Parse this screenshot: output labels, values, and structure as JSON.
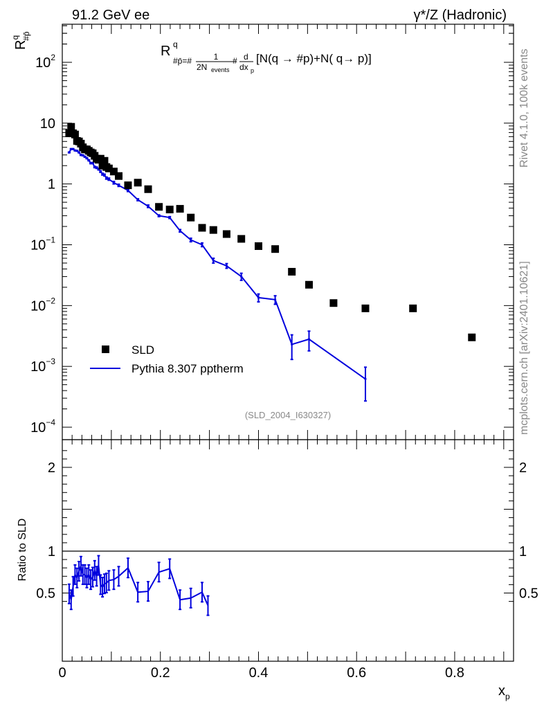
{
  "header": {
    "energy_label": "91.2 GeV ee",
    "process_label": "γ*/Z (Hadronic)"
  },
  "side_labels": {
    "rivet": "Rivet 4.1.0,  100k events",
    "source": "mcplots.cern.ch [arXiv:2401.10621]"
  },
  "chart_data": [
    {
      "type": "scatter",
      "panel": "main",
      "title": "R^q_{p/p̄} = 1/(2N_events) d/dx_p [N(q → p̄) + N(q̄ → p)]",
      "formula": {
        "lhs_main": "R",
        "lhs_sup": "q",
        "lhs_sub": "#p̄",
        "eq_sub": "#p̄=#",
        "num": "1",
        "den_main": "2N",
        "den_sub": "events",
        "hash": "#",
        "d": "d",
        "dx": "dx",
        "dx_sub": "p",
        "tail": "[N(q →  #p)+N( q→  p)]"
      },
      "ylabel": "R^q_{#p̄}",
      "ylabel_main": "R",
      "ylabel_sup": "q",
      "ylabel_sub": "#p̄",
      "xlabel": "x_p",
      "xlabel_main": "x",
      "xlabel_sub": "p",
      "yscale": "log",
      "xlim": [
        0,
        0.92
      ],
      "ylim": [
        0.0001,
        400
      ],
      "y_ticks": [
        {
          "value": 0.0001,
          "base": "10",
          "exp": "−4"
        },
        {
          "value": 0.001,
          "base": "10",
          "exp": "−3"
        },
        {
          "value": 0.01,
          "base": "10",
          "exp": "−2"
        },
        {
          "value": 0.1,
          "base": "10",
          "exp": "−1"
        },
        {
          "value": 1,
          "base": "1",
          "exp": ""
        },
        {
          "value": 10,
          "base": "10",
          "exp": ""
        },
        {
          "value": 100,
          "base": "10",
          "exp": "2"
        }
      ],
      "watermark": "(SLD_2004_I630327)",
      "legend_position": "bottom-left",
      "series": [
        {
          "name": "SLD",
          "style": "markers",
          "color": "#000000",
          "x": [
            0.014,
            0.018,
            0.022,
            0.026,
            0.03,
            0.034,
            0.038,
            0.042,
            0.046,
            0.05,
            0.054,
            0.058,
            0.062,
            0.066,
            0.07,
            0.074,
            0.078,
            0.082,
            0.086,
            0.09,
            0.095,
            0.105,
            0.115,
            0.134,
            0.154,
            0.175,
            0.197,
            0.219,
            0.24,
            0.262,
            0.285,
            0.308,
            0.335,
            0.365,
            0.4,
            0.434,
            0.468,
            0.503,
            0.553,
            0.618,
            0.715,
            0.835
          ],
          "values": [
            6.8,
            8.7,
            6.8,
            6.5,
            5.1,
            5.0,
            4.6,
            4.0,
            3.7,
            3.7,
            3.5,
            3.3,
            3.2,
            2.9,
            2.6,
            2.5,
            2.6,
            2.0,
            2.4,
            1.9,
            1.8,
            1.6,
            1.35,
            0.95,
            1.05,
            0.82,
            0.42,
            0.38,
            0.39,
            0.28,
            0.19,
            0.175,
            0.15,
            0.125,
            0.095,
            0.085,
            0.036,
            0.022,
            0.011,
            0.009,
            0.009,
            0.003
          ]
        },
        {
          "name": "Pythia 8.307 pptherm",
          "style": "line",
          "color": "#0000dd",
          "x": [
            0.014,
            0.018,
            0.022,
            0.026,
            0.03,
            0.034,
            0.038,
            0.042,
            0.046,
            0.05,
            0.054,
            0.058,
            0.062,
            0.066,
            0.07,
            0.074,
            0.078,
            0.082,
            0.086,
            0.09,
            0.095,
            0.105,
            0.115,
            0.134,
            0.154,
            0.175,
            0.197,
            0.219,
            0.24,
            0.262,
            0.285,
            0.308,
            0.335,
            0.365,
            0.4,
            0.434,
            0.468,
            0.503,
            0.618
          ],
          "values": [
            3.3,
            3.75,
            3.75,
            3.55,
            3.5,
            3.3,
            3.0,
            2.95,
            2.8,
            2.65,
            2.45,
            2.2,
            2.2,
            1.9,
            1.85,
            1.75,
            1.6,
            1.45,
            1.4,
            1.25,
            1.2,
            1.05,
            0.95,
            0.78,
            0.55,
            0.43,
            0.3,
            0.28,
            0.17,
            0.12,
            0.1,
            0.055,
            0.045,
            0.03,
            0.0135,
            0.0125,
            0.0023,
            0.0028,
            0.00062
          ],
          "err_lo": [
            0.05,
            0.05,
            0.05,
            0.05,
            0.05,
            0.05,
            0.05,
            0.05,
            0.05,
            0.05,
            0.05,
            0.05,
            0.05,
            0.05,
            0.05,
            0.05,
            0.05,
            0.05,
            0.05,
            0.05,
            0.05,
            0.05,
            0.04,
            0.03,
            0.02,
            0.02,
            0.01,
            0.01,
            0.008,
            0.008,
            0.007,
            0.005,
            0.004,
            0.004,
            0.002,
            0.002,
            0.001,
            0.001,
            0.00035
          ],
          "err_hi": [
            0.05,
            0.05,
            0.05,
            0.05,
            0.05,
            0.05,
            0.05,
            0.05,
            0.05,
            0.05,
            0.05,
            0.05,
            0.05,
            0.05,
            0.05,
            0.05,
            0.05,
            0.05,
            0.05,
            0.05,
            0.05,
            0.05,
            0.04,
            0.03,
            0.02,
            0.02,
            0.01,
            0.01,
            0.008,
            0.008,
            0.007,
            0.005,
            0.004,
            0.004,
            0.002,
            0.002,
            0.001,
            0.001,
            0.00035
          ]
        }
      ]
    },
    {
      "type": "line",
      "panel": "ratio",
      "ylabel": "Ratio to SLD",
      "xlabel": "x_p",
      "xlim": [
        0,
        0.92
      ],
      "ylim": [
        0.35,
        2.3
      ],
      "y_ticks": [
        {
          "value": 0.5,
          "label": "0.5"
        },
        {
          "value": 1,
          "label": "1"
        },
        {
          "value": 2,
          "label": "2"
        }
      ],
      "x_ticks": [
        {
          "value": 0,
          "label": "0"
        },
        {
          "value": 0.2,
          "label": "0.2"
        },
        {
          "value": 0.4,
          "label": "0.4"
        },
        {
          "value": 0.6,
          "label": "0.6"
        },
        {
          "value": 0.8,
          "label": "0.8"
        }
      ],
      "reference_line": 1,
      "series": [
        {
          "name": "Pythia 8.307 pptherm / SLD",
          "color": "#0000dd",
          "x": [
            0.014,
            0.018,
            0.022,
            0.026,
            0.03,
            0.034,
            0.038,
            0.042,
            0.046,
            0.05,
            0.054,
            0.058,
            0.062,
            0.066,
            0.07,
            0.074,
            0.078,
            0.082,
            0.086,
            0.09,
            0.095,
            0.105,
            0.115,
            0.134,
            0.154,
            0.175,
            0.197,
            0.219,
            0.24,
            0.262,
            0.285,
            0.297
          ],
          "values": [
            0.49,
            0.42,
            0.58,
            0.72,
            0.68,
            0.76,
            0.82,
            0.72,
            0.72,
            0.68,
            0.72,
            0.66,
            0.69,
            0.77,
            0.7,
            0.83,
            0.6,
            0.57,
            0.61,
            0.62,
            0.65,
            0.66,
            0.7,
            0.8,
            0.51,
            0.52,
            0.75,
            0.79,
            0.42,
            0.44,
            0.51,
            0.35
          ]
        }
      ]
    }
  ]
}
